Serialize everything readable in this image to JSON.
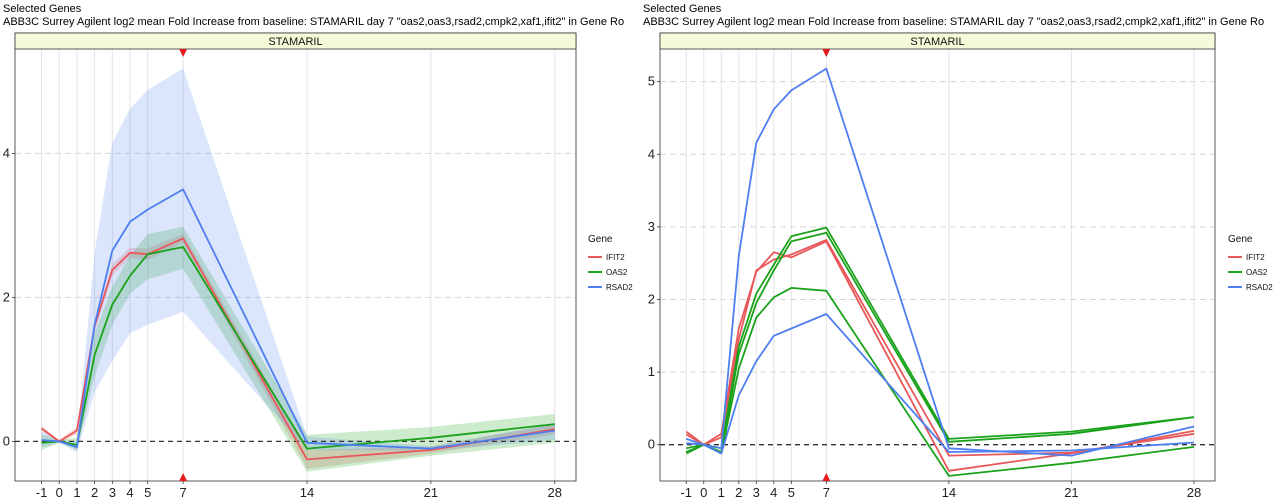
{
  "colors": {
    "IFIT2": "#e8585a",
    "OAS2": "#1aa31a",
    "RSAD2": "#4d7ff0",
    "strip_fill": "#f3fbd9",
    "arrow": "#e41a1c"
  },
  "chart_data": [
    {
      "type": "line",
      "header_line1": "Selected Genes",
      "title": "ABB3C Surrey Agilent log2 mean Fold Increase from baseline: STAMARIL day 7 \"oas2,oas3,rsad2,cmpk2,xaf1,ifit2\" in Gene Ro",
      "strip_label": "STAMARIL",
      "x_ticks": [
        -1,
        0,
        1,
        2,
        3,
        4,
        5,
        7,
        14,
        21,
        28
      ],
      "x_tick_labels": [
        "-1",
        "0",
        "1",
        "2",
        "3",
        "4",
        "5",
        "7",
        "14",
        "21",
        "28"
      ],
      "xlim": [
        -2.5,
        29.2
      ],
      "ylim": [
        -0.55,
        5.45
      ],
      "y_ticks": [
        0,
        2,
        4
      ],
      "y_tick_labels": [
        "0",
        "2",
        "4"
      ],
      "y_dashed": [
        0
      ],
      "y_minor_dashed": [
        2,
        4
      ],
      "highlight_x": 7,
      "legend_title": "Gene",
      "legend_position": "right",
      "series": [
        {
          "name": "IFIT2",
          "x": [
            -1,
            0,
            1,
            2,
            3,
            4,
            5,
            7,
            14,
            21,
            28
          ],
          "values": [
            0.18,
            0.0,
            0.15,
            1.6,
            2.38,
            2.62,
            2.6,
            2.82,
            -0.25,
            -0.12,
            0.17
          ],
          "lower": [
            0.14,
            -0.02,
            0.1,
            1.52,
            2.3,
            2.55,
            2.52,
            2.76,
            -0.38,
            -0.17,
            0.1
          ],
          "upper": [
            0.22,
            0.02,
            0.2,
            1.68,
            2.46,
            2.69,
            2.68,
            2.88,
            -0.12,
            -0.07,
            0.24
          ]
        },
        {
          "name": "OAS2",
          "x": [
            -1,
            0,
            1,
            2,
            3,
            4,
            5,
            7,
            14,
            21,
            28
          ],
          "values": [
            -0.02,
            0.0,
            -0.05,
            1.2,
            1.9,
            2.3,
            2.6,
            2.7,
            -0.1,
            0.05,
            0.24
          ],
          "lower": [
            -0.12,
            -0.02,
            -0.12,
            0.9,
            1.62,
            2.05,
            2.25,
            2.4,
            -0.42,
            -0.2,
            -0.02
          ],
          "upper": [
            0.1,
            0.02,
            0.05,
            1.5,
            2.15,
            2.58,
            2.88,
            2.98,
            0.09,
            0.2,
            0.38
          ]
        },
        {
          "name": "RSAD2",
          "x": [
            -1,
            0,
            1,
            2,
            3,
            4,
            5,
            7,
            14,
            21,
            28
          ],
          "values": [
            0.02,
            0.0,
            -0.08,
            1.62,
            2.65,
            3.05,
            3.22,
            3.5,
            -0.02,
            -0.1,
            0.15
          ],
          "lower": [
            -0.08,
            -0.02,
            -0.15,
            0.68,
            1.12,
            1.5,
            1.62,
            1.8,
            -0.12,
            -0.13,
            0.02
          ],
          "upper": [
            0.14,
            0.02,
            0.0,
            2.62,
            4.15,
            4.62,
            4.88,
            5.18,
            0.07,
            -0.07,
            0.25
          ]
        }
      ]
    },
    {
      "type": "line",
      "header_line1": "Selected Genes",
      "title": "ABB3C Surrey Agilent log2 mean Fold Increase from baseline: STAMARIL day 7 \"oas2,oas3,rsad2,cmpk2,xaf1,ifit2\" in Gene Ro",
      "strip_label": "STAMARIL",
      "x_ticks": [
        -1,
        0,
        1,
        2,
        3,
        4,
        5,
        7,
        14,
        21,
        28
      ],
      "x_tick_labels": [
        "-1",
        "0",
        "1",
        "2",
        "3",
        "4",
        "5",
        "7",
        "14",
        "21",
        "28"
      ],
      "xlim": [
        -2.5,
        29.2
      ],
      "ylim": [
        -0.5,
        5.45
      ],
      "y_ticks": [
        0,
        1,
        2,
        3,
        4,
        5
      ],
      "y_tick_labels": [
        "0",
        "1",
        "2",
        "3",
        "4",
        "5"
      ],
      "y_dashed": [
        0
      ],
      "y_minor_dashed": [
        1,
        2,
        3,
        4,
        5
      ],
      "highlight_x": 7,
      "legend_title": "Gene",
      "legend_position": "right",
      "series": [
        {
          "name": "IFIT2",
          "x": [
            -1,
            0,
            1,
            2,
            3,
            4,
            5,
            7,
            14,
            21,
            28
          ],
          "values": [
            0.18,
            0.0,
            0.15,
            1.6,
            2.38,
            2.65,
            2.58,
            2.8,
            -0.36,
            -0.12,
            0.19
          ]
        },
        {
          "name": "IFIT2",
          "x": [
            -1,
            0,
            1,
            2,
            3,
            4,
            5,
            7,
            14,
            21,
            28
          ],
          "values": [
            0.14,
            0.0,
            0.1,
            1.45,
            2.4,
            2.55,
            2.62,
            2.82,
            -0.15,
            -0.11,
            0.15
          ]
        },
        {
          "name": "OAS2",
          "x": [
            -1,
            0,
            1,
            2,
            3,
            4,
            5,
            7,
            14,
            21,
            28
          ],
          "values": [
            -0.05,
            0.0,
            -0.05,
            1.35,
            2.08,
            2.48,
            2.87,
            2.99,
            0.08,
            0.18,
            0.38
          ]
        },
        {
          "name": "OAS2",
          "x": [
            -1,
            0,
            1,
            2,
            3,
            4,
            5,
            7,
            14,
            21,
            28
          ],
          "values": [
            -0.1,
            0.0,
            -0.1,
            1.25,
            1.95,
            2.4,
            2.8,
            2.92,
            0.04,
            0.15,
            0.38
          ]
        },
        {
          "name": "OAS2",
          "x": [
            -1,
            0,
            1,
            2,
            3,
            4,
            5,
            7,
            14,
            21,
            28
          ],
          "values": [
            -0.12,
            0.0,
            -0.12,
            1.05,
            1.75,
            2.03,
            2.16,
            2.12,
            -0.43,
            -0.25,
            -0.03
          ]
        },
        {
          "name": "RSAD2",
          "x": [
            -1,
            0,
            1,
            2,
            3,
            4,
            5,
            7,
            14,
            21,
            28
          ],
          "values": [
            0.08,
            0.0,
            -0.05,
            2.6,
            4.16,
            4.62,
            4.88,
            5.18,
            -0.05,
            -0.15,
            0.25
          ]
        },
        {
          "name": "RSAD2",
          "x": [
            -1,
            0,
            1,
            2,
            3,
            4,
            5,
            7,
            14,
            21,
            28
          ],
          "values": [
            0.02,
            0.0,
            -0.12,
            0.68,
            1.15,
            1.5,
            1.6,
            1.8,
            -0.1,
            -0.08,
            0.03
          ]
        }
      ]
    }
  ]
}
